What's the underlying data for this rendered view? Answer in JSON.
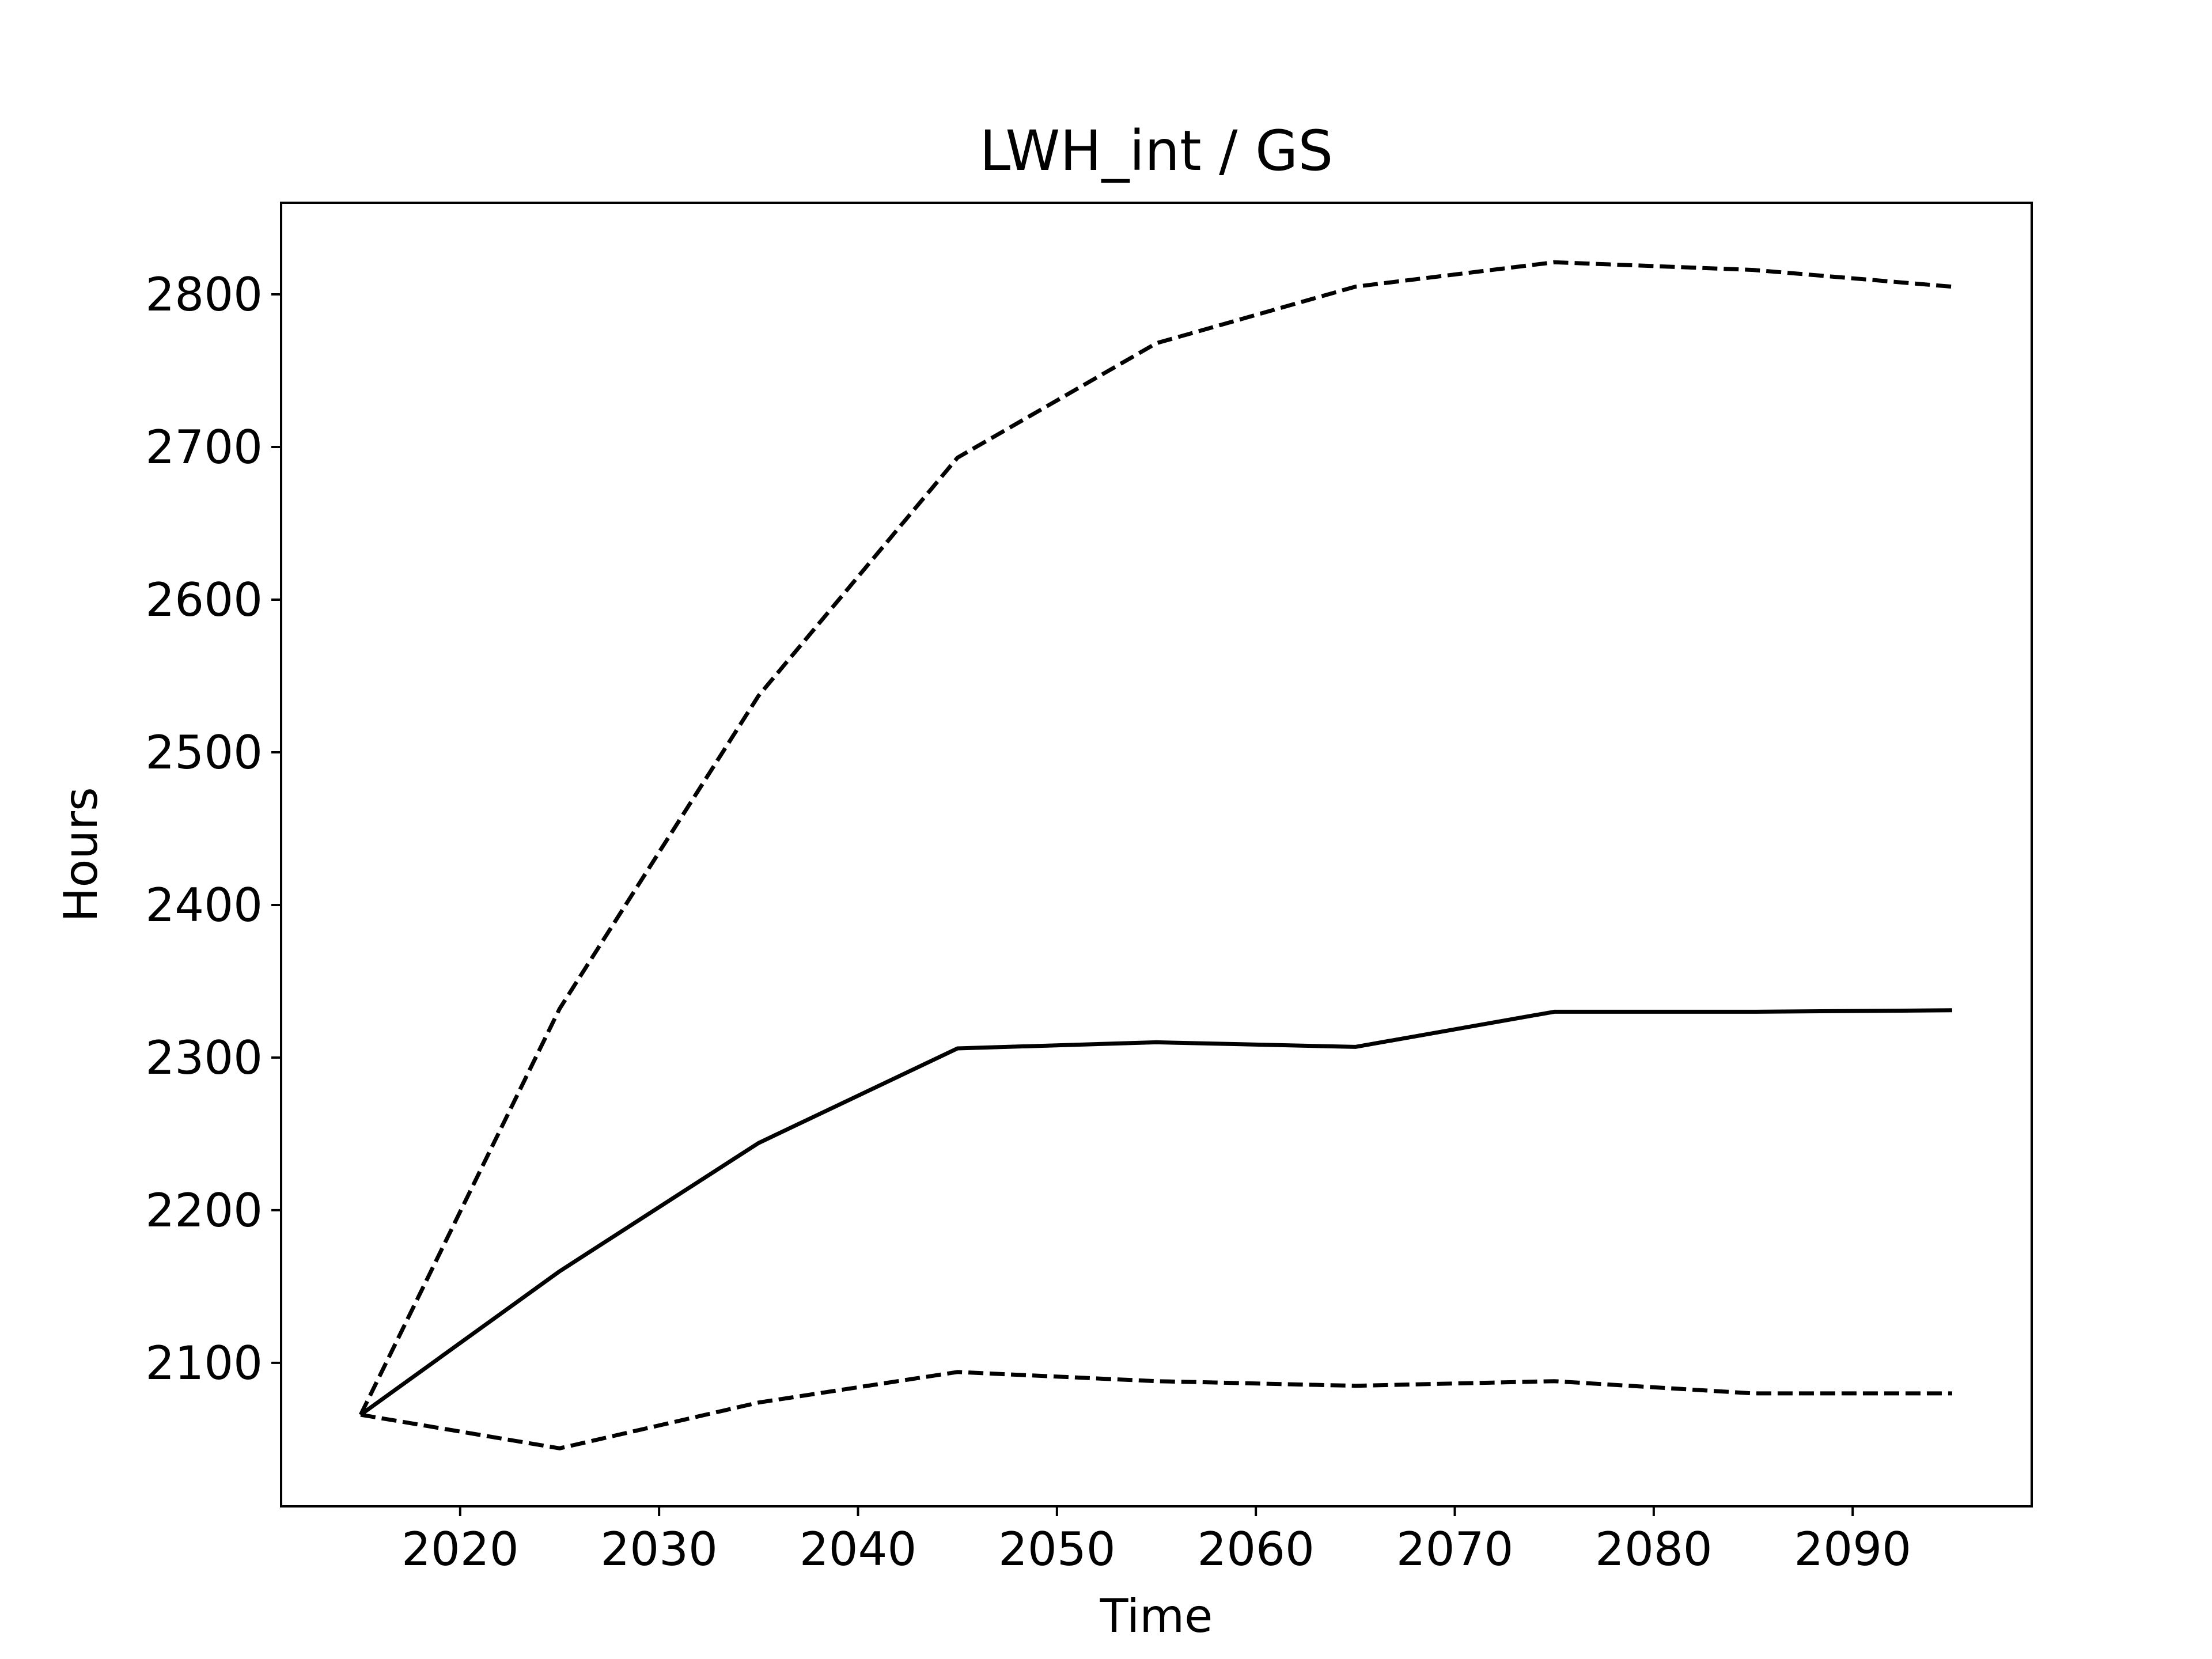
{
  "chart_data": {
    "type": "line",
    "title": "LWH_int / GS",
    "xlabel": "Time",
    "ylabel": "Hours",
    "xlim": [
      2011,
      2099
    ],
    "ylim": [
      2006,
      2860
    ],
    "xticks": [
      2020,
      2030,
      2040,
      2050,
      2060,
      2070,
      2080,
      2090
    ],
    "yticks": [
      2100,
      2200,
      2300,
      2400,
      2500,
      2600,
      2700,
      2800
    ],
    "grid": false,
    "legend": "none",
    "x": [
      2015,
      2025,
      2035,
      2045,
      2055,
      2065,
      2075,
      2085,
      2095
    ],
    "series": [
      {
        "style": "solid",
        "color": "#000000",
        "values": [
          2066,
          2160,
          2244,
          2306,
          2310,
          2307,
          2330,
          2330,
          2331
        ]
      },
      {
        "style": "dashed",
        "color": "#000000",
        "values": [
          2066,
          2332,
          2537,
          2693,
          2768,
          2805,
          2821,
          2816,
          2805
        ]
      },
      {
        "style": "dashed",
        "color": "#000000",
        "values": [
          2066,
          2044,
          2074,
          2094,
          2088,
          2085,
          2088,
          2080,
          2080
        ]
      }
    ]
  }
}
